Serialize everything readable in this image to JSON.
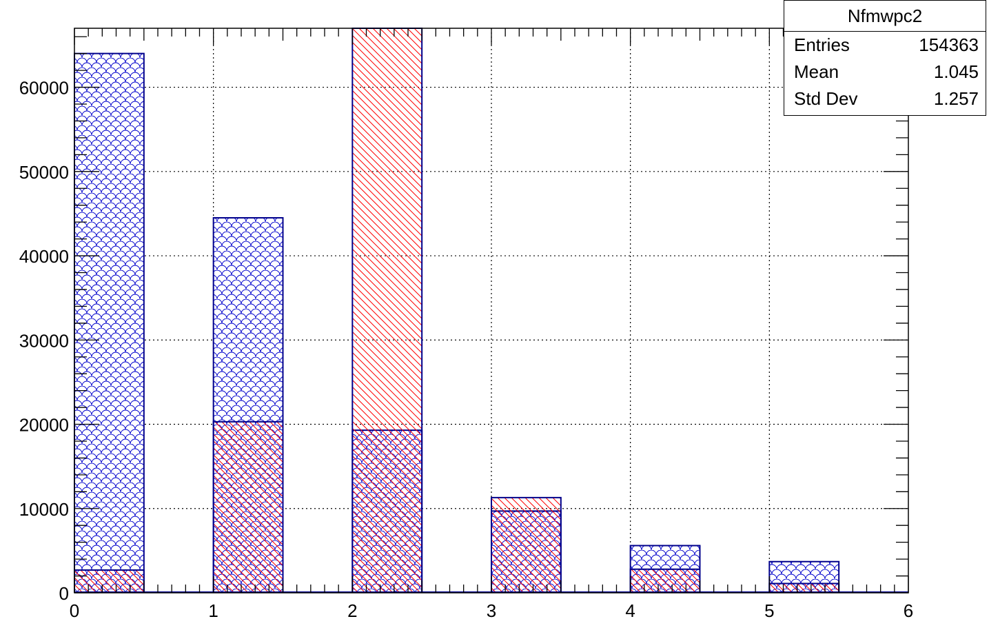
{
  "chart_data": {
    "type": "bar",
    "title": "",
    "xlabel": "",
    "ylabel": "",
    "xlim": [
      0,
      6
    ],
    "ylim": [
      0,
      67000
    ],
    "grid": true,
    "x_ticks": [
      "0",
      "1",
      "2",
      "3",
      "4",
      "5",
      "6"
    ],
    "y_ticks": [
      "0",
      "10000",
      "20000",
      "30000",
      "40000",
      "50000",
      "60000"
    ],
    "bin_width": 0.5,
    "bins": [
      0,
      1,
      2,
      3,
      4,
      5
    ],
    "series": [
      {
        "fill_pattern": "blue-scales",
        "color": "#0000cc",
        "values": [
          64000,
          44500,
          19300,
          9700,
          5600,
          3700
        ]
      },
      {
        "fill_pattern": "red-diagonal-hatch",
        "color": "#ff0000",
        "values": [
          2700,
          20300,
          67000,
          11300,
          2800,
          1100
        ]
      }
    ]
  },
  "stats": {
    "title": "Nfmwpc2",
    "rows": [
      {
        "label": "Entries",
        "value": "154363"
      },
      {
        "label": "Mean",
        "value": "1.045"
      },
      {
        "label": "Std Dev",
        "value": "1.257"
      }
    ]
  }
}
